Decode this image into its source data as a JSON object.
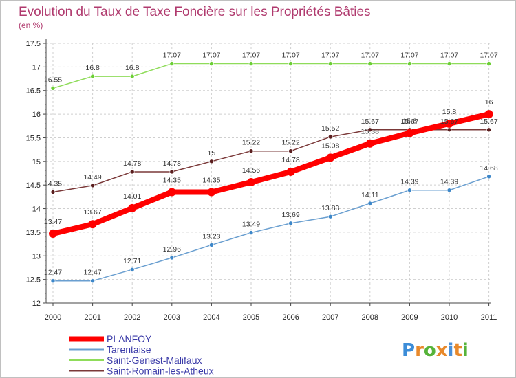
{
  "chart_data": {
    "type": "line",
    "title": "Evolution du Taux de Taxe Foncière sur les Propriétés Bâties",
    "subtitle": "(en %)",
    "xlabel": "",
    "ylabel": "",
    "ylim": [
      12,
      17.5
    ],
    "ytick_labels": [
      "12",
      "12.5",
      "13",
      "13.5",
      "14",
      "14.5",
      "15",
      "15.5",
      "16",
      "16.5",
      "17",
      "17.5"
    ],
    "categories": [
      "2000",
      "2001",
      "2002",
      "2003",
      "2004",
      "2005",
      "2006",
      "2007",
      "2008",
      "2009",
      "2010",
      "2011"
    ],
    "series": [
      {
        "name": "PLANFOY",
        "color": "#ff0000",
        "marker": "#ff0000",
        "values": [
          13.47,
          13.67,
          14.01,
          14.35,
          14.35,
          14.56,
          14.78,
          15.08,
          15.38,
          15.6,
          15.8,
          16
        ],
        "labels": [
          "13.47",
          "13.67",
          "14.01",
          "14.35",
          "14.35",
          "14.56",
          "14.78",
          "15.08",
          "15.38",
          "15.6",
          "15.8",
          "16"
        ]
      },
      {
        "name": "Tarentaise",
        "color": "#6a9fd0",
        "marker": "#3d87c9",
        "values": [
          12.47,
          12.47,
          12.71,
          12.96,
          13.23,
          13.49,
          13.69,
          13.83,
          14.11,
          14.39,
          14.39,
          14.68
        ],
        "labels": [
          "12.47",
          "12.47",
          "12.71",
          "12.96",
          "13.23",
          "13.49",
          "13.69",
          "13.83",
          "14.11",
          "14.39",
          "14.39",
          "14.68"
        ]
      },
      {
        "name": "Saint-Genest-Malifaux",
        "color": "#8fdc5a",
        "marker": "#6ccf35",
        "values": [
          16.55,
          16.8,
          16.8,
          17.07,
          17.07,
          17.07,
          17.07,
          17.07,
          17.07,
          17.07,
          17.07,
          17.07
        ],
        "labels": [
          "16.55",
          "16.8",
          "16.8",
          "17.07",
          "17.07",
          "17.07",
          "17.07",
          "17.07",
          "17.07",
          "17.07",
          "17.07",
          "17.07"
        ]
      },
      {
        "name": "Saint-Romain-les-Atheux",
        "color": "#7a3838",
        "marker": "#5a1e1e",
        "values": [
          14.35,
          14.49,
          14.78,
          14.78,
          15,
          15.22,
          15.22,
          15.52,
          15.67,
          15.67,
          15.67,
          15.67
        ],
        "labels": [
          "14.35",
          "14.49",
          "14.78",
          "14.78",
          "15",
          "15.22",
          "15.22",
          "15.52",
          "15.67",
          "15.67",
          "15.67",
          "15.67"
        ]
      }
    ],
    "grid": true,
    "legend_position": "bottom-left"
  },
  "logo": {
    "text": "Proxiti",
    "letters": [
      "P",
      "r",
      "o",
      "x",
      "i",
      "t",
      "i"
    ],
    "colors": [
      "#3c8dd8",
      "#e8892b",
      "#56b33a",
      "#e8892b",
      "#4a90d9",
      "#e8892b",
      "#56b33a"
    ]
  }
}
